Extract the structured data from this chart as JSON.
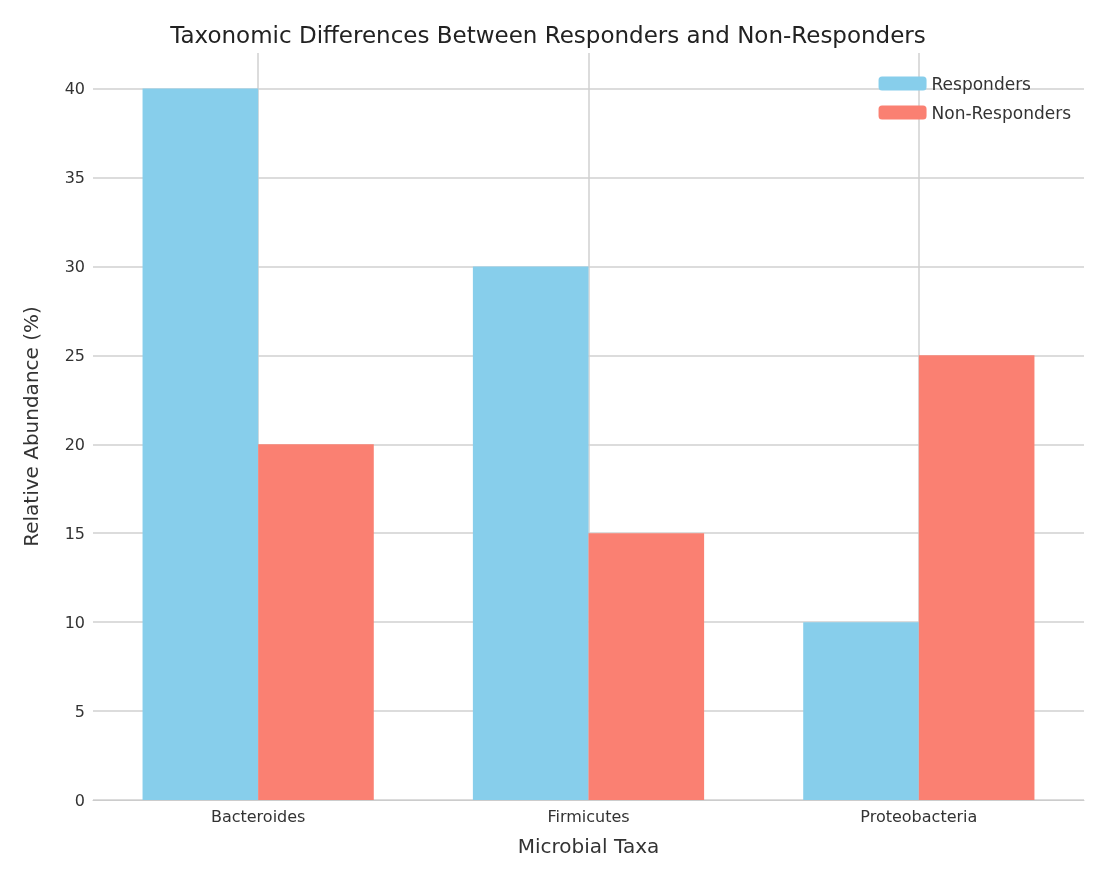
{
  "chart_data": {
    "type": "bar",
    "title": "Taxonomic Differences Between Responders and Non-Responders",
    "xlabel": "Microbial Taxa",
    "ylabel": "Relative Abundance (%)",
    "categories": [
      "Bacteroides",
      "Firmicutes",
      "Proteobacteria"
    ],
    "series": [
      {
        "name": "Responders",
        "color": "#87ceeb",
        "values": [
          40,
          30,
          10
        ]
      },
      {
        "name": "Non-Responders",
        "color": "#fa8072",
        "values": [
          20,
          15,
          25
        ]
      }
    ],
    "ylim": [
      0,
      42
    ],
    "yticks": [
      0,
      5,
      10,
      15,
      20,
      25,
      30,
      35,
      40
    ],
    "grid": true,
    "legend": "top right"
  }
}
